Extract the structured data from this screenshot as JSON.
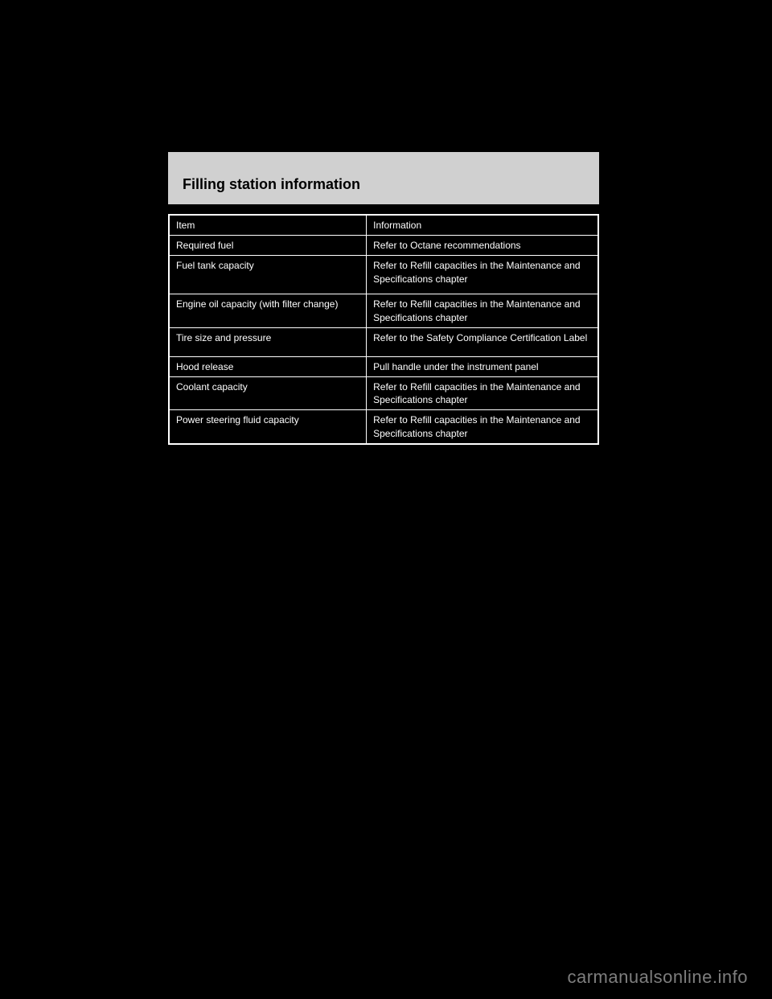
{
  "header": {
    "title": "Filling station information"
  },
  "table": {
    "rows": [
      {
        "label": "Item",
        "value": "Information"
      },
      {
        "label": "Required fuel",
        "value": "Refer to Octane recommendations"
      },
      {
        "label": "Fuel tank capacity",
        "value": "Refer to Refill capacities in the Maintenance and Specifications chapter"
      },
      {
        "label": "Engine oil capacity (with filter change)",
        "value": "Refer to Refill capacities in the Maintenance and Specifications chapter"
      },
      {
        "label": "Tire size and pressure",
        "value": "Refer to the Safety Compliance Certification Label"
      },
      {
        "label": "Hood release",
        "value": "Pull handle under the instrument panel"
      },
      {
        "label": "Coolant capacity",
        "value": "Refer to Refill capacities in the Maintenance and Specifications chapter"
      },
      {
        "label": "Power steering fluid capacity",
        "value": "Refer to Refill capacities in the Maintenance and Specifications chapter"
      }
    ]
  },
  "footer": {
    "watermark": "carmanualsonline.info"
  },
  "colors": {
    "page_bg": "#000000",
    "header_bg": "#d0d0d0",
    "header_text": "#000000",
    "table_border": "#ffffff",
    "table_text": "#ffffff",
    "watermark_text": "#7e7e7e"
  }
}
